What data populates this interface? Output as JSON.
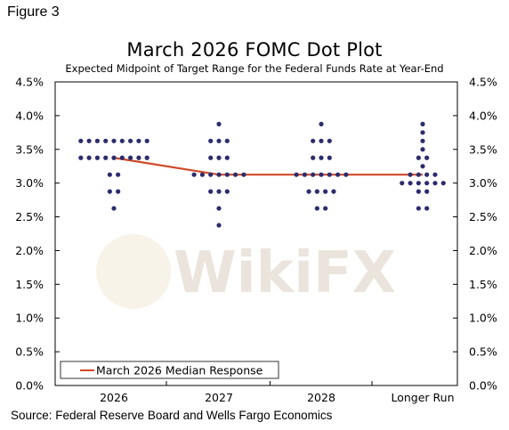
{
  "figure_label": "Figure 3",
  "source": "Source: Federal Reserve Board and Wells Fargo Economics",
  "watermark": "WikiFX",
  "colors": {
    "dots": "#2b2d6e",
    "median_line": "#d04a28",
    "axis": "#000000",
    "watermark": "#e8e2da"
  },
  "chart_data": {
    "type": "scatter",
    "title": "March 2026 FOMC Dot Plot",
    "subtitle": "Expected Midpoint of Target Range for the Federal Funds Rate at Year-End",
    "categories": [
      "2026",
      "2027",
      "2028",
      "Longer Run"
    ],
    "y_ticks": [
      "0.0%",
      "0.5%",
      "1.0%",
      "1.5%",
      "2.0%",
      "2.5%",
      "3.0%",
      "3.5%",
      "4.0%",
      "4.5%"
    ],
    "ylim": [
      0,
      4.5
    ],
    "grid": false,
    "dot_series": [
      {
        "category": "2026",
        "levels": [
          {
            "value": 3.625,
            "count": 9
          },
          {
            "value": 3.375,
            "count": 9
          },
          {
            "value": 3.125,
            "count": 2
          },
          {
            "value": 2.875,
            "count": 2
          },
          {
            "value": 2.625,
            "count": 1
          }
        ]
      },
      {
        "category": "2027",
        "levels": [
          {
            "value": 3.875,
            "count": 1
          },
          {
            "value": 3.625,
            "count": 3
          },
          {
            "value": 3.375,
            "count": 3
          },
          {
            "value": 3.125,
            "count": 7
          },
          {
            "value": 2.875,
            "count": 3
          },
          {
            "value": 2.625,
            "count": 1
          },
          {
            "value": 2.375,
            "count": 1
          }
        ]
      },
      {
        "category": "2028",
        "levels": [
          {
            "value": 3.875,
            "count": 1
          },
          {
            "value": 3.625,
            "count": 3
          },
          {
            "value": 3.375,
            "count": 3
          },
          {
            "value": 3.125,
            "count": 7
          },
          {
            "value": 2.875,
            "count": 4
          },
          {
            "value": 2.625,
            "count": 2
          }
        ]
      },
      {
        "category": "Longer Run",
        "levels": [
          {
            "value": 3.875,
            "count": 1
          },
          {
            "value": 3.75,
            "count": 1
          },
          {
            "value": 3.625,
            "count": 1
          },
          {
            "value": 3.5,
            "count": 1
          },
          {
            "value": 3.375,
            "count": 2
          },
          {
            "value": 3.25,
            "count": 1
          },
          {
            "value": 3.125,
            "count": 4
          },
          {
            "value": 3.0,
            "count": 6
          },
          {
            "value": 2.875,
            "count": 2
          },
          {
            "value": 2.625,
            "count": 2
          }
        ]
      }
    ],
    "series": [
      {
        "name": "March 2026 Median Response",
        "type": "line",
        "values": [
          3.375,
          3.125,
          3.125,
          3.125
        ]
      }
    ],
    "legend": {
      "position": "bottom-left"
    }
  }
}
